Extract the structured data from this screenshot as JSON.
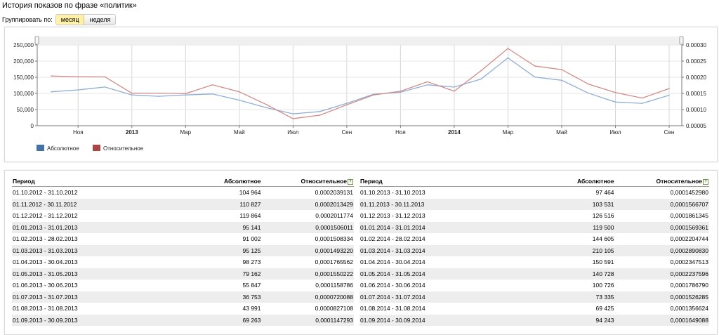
{
  "page": {
    "title": "История показов по фразе «политик»",
    "group_label": "Группировать по:",
    "group_options": [
      "месяц",
      "неделя"
    ],
    "group_selected": "месяц"
  },
  "chart_data": {
    "type": "line",
    "x": [
      "2012-10",
      "2012-11",
      "2012-12",
      "2013-01",
      "2013-02",
      "2013-03",
      "2013-04",
      "2013-05",
      "2013-06",
      "2013-07",
      "2013-08",
      "2013-09",
      "2013-10",
      "2013-11",
      "2013-12",
      "2014-01",
      "2014-02",
      "2014-03",
      "2014-04",
      "2014-05",
      "2014-06",
      "2014-07",
      "2014-08",
      "2014-09"
    ],
    "x_tick_labels": [
      "Ноя",
      "2013",
      "Мар",
      "Май",
      "Июл",
      "Сен",
      "Ноя",
      "2014",
      "Мар",
      "Май",
      "Июл",
      "Сен"
    ],
    "x_tick_bold": [
      false,
      true,
      false,
      false,
      false,
      false,
      false,
      true,
      false,
      false,
      false,
      false
    ],
    "y_left_ticks": [
      "250,000",
      "200,000",
      "150,000",
      "100,000",
      "50,000",
      "0"
    ],
    "y_right_ticks": [
      "0.00030",
      "0.00025",
      "0.00020",
      "0.00015",
      "0.00010",
      "0.00005"
    ],
    "ylim_left": [
      0,
      250000
    ],
    "ylim_right": [
      5e-05,
      0.0003
    ],
    "series": [
      {
        "name": "Абсолютное",
        "axis": "left",
        "color": "#4572a7",
        "line_color": "#8faed4",
        "values": [
          104964,
          110827,
          119864,
          95141,
          91002,
          95125,
          98273,
          79162,
          55847,
          36753,
          43991,
          69263,
          97464,
          103531,
          126516,
          119500,
          144605,
          210105,
          150591,
          140728,
          100726,
          73335,
          69425,
          94243
        ]
      },
      {
        "name": "Относительное",
        "axis": "right",
        "color": "#aa4643",
        "line_color": "#d08a88",
        "values": [
          0.0002039131,
          0.0002013429,
          0.0002011774,
          0.0001506011,
          0.0001508334,
          0.000149322,
          0.0001765562,
          0.0001550222,
          0.0001158786,
          7.20088e-05,
          8.27108e-05,
          0.0001147293,
          0.000145298,
          0.0001566707,
          0.0001861345,
          0.0001569361,
          0.0002204744,
          0.000289083,
          0.0002347513,
          0.0002237596,
          0.000178679,
          0.0001526285,
          0.0001356624,
          0.0001649088
        ]
      }
    ],
    "grid": true,
    "legend_placement": "bottom-left"
  },
  "table": {
    "headers": {
      "period": "Период",
      "absolute": "Абсолютное",
      "relative": "Относительное"
    },
    "help_glyph": "?",
    "left_rows": [
      {
        "period": "01.10.2012 - 31.10.2012",
        "absolute": "104 964",
        "relative": "0,0002039131"
      },
      {
        "period": "01.11.2012 - 30.11.2012",
        "absolute": "110 827",
        "relative": "0,0002013429"
      },
      {
        "period": "01.12.2012 - 31.12.2012",
        "absolute": "119 864",
        "relative": "0,0002011774"
      },
      {
        "period": "01.01.2013 - 31.01.2013",
        "absolute": "95 141",
        "relative": "0,0001506011"
      },
      {
        "period": "01.02.2013 - 28.02.2013",
        "absolute": "91 002",
        "relative": "0,0001508334"
      },
      {
        "period": "01.03.2013 - 31.03.2013",
        "absolute": "95 125",
        "relative": "0,0001493220"
      },
      {
        "period": "01.04.2013 - 30.04.2013",
        "absolute": "98 273",
        "relative": "0,0001765562"
      },
      {
        "period": "01.05.2013 - 31.05.2013",
        "absolute": "79 162",
        "relative": "0,0001550222"
      },
      {
        "period": "01.06.2013 - 30.06.2013",
        "absolute": "55 847",
        "relative": "0,0001158786"
      },
      {
        "period": "01.07.2013 - 31.07.2013",
        "absolute": "36 753",
        "relative": "0,0000720088"
      },
      {
        "period": "01.08.2013 - 31.08.2013",
        "absolute": "43 991",
        "relative": "0,0000827108"
      },
      {
        "period": "01.09.2013 - 30.09.2013",
        "absolute": "69 263",
        "relative": "0,0001147293"
      }
    ],
    "right_rows": [
      {
        "period": "01.10.2013 - 31.10.2013",
        "absolute": "97 464",
        "relative": "0,0001452980"
      },
      {
        "period": "01.11.2013 - 30.11.2013",
        "absolute": "103 531",
        "relative": "0,0001566707"
      },
      {
        "period": "01.12.2013 - 31.12.2013",
        "absolute": "126 516",
        "relative": "0,0001861345"
      },
      {
        "period": "01.01.2014 - 31.01.2014",
        "absolute": "119 500",
        "relative": "0,0001569361"
      },
      {
        "period": "01.02.2014 - 28.02.2014",
        "absolute": "144 605",
        "relative": "0,0002204744"
      },
      {
        "period": "01.03.2014 - 31.03.2014",
        "absolute": "210 105",
        "relative": "0,0002890830"
      },
      {
        "period": "01.04.2014 - 30.04.2014",
        "absolute": "150 591",
        "relative": "0,0002347513"
      },
      {
        "period": "01.05.2014 - 31.05.2014",
        "absolute": "140 728",
        "relative": "0,0002237596"
      },
      {
        "period": "01.06.2014 - 30.06.2014",
        "absolute": "100 726",
        "relative": "0,0001786790"
      },
      {
        "period": "01.07.2014 - 31.07.2014",
        "absolute": "73 335",
        "relative": "0,0001526285"
      },
      {
        "period": "01.08.2014 - 31.08.2014",
        "absolute": "69 425",
        "relative": "0,0001356624"
      },
      {
        "period": "01.09.2014 - 30.09.2014",
        "absolute": "94 243",
        "relative": "0,0001649088"
      }
    ]
  }
}
